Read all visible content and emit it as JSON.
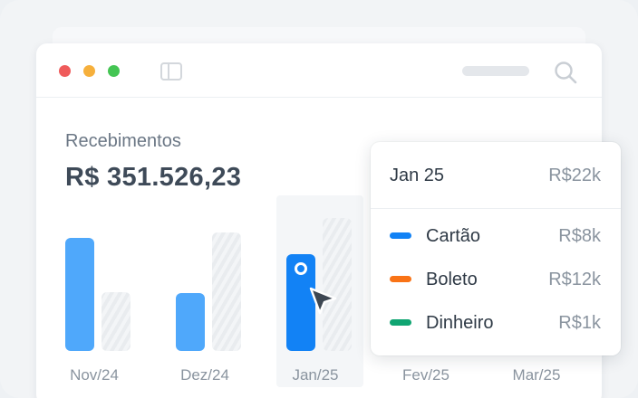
{
  "summary": {
    "label": "Recebimentos",
    "total": "R$ 351.526,23"
  },
  "chart_data": {
    "type": "bar",
    "categories": [
      "Nov/24",
      "Dez/24",
      "Jan/25",
      "Fev/25",
      "Mar/25"
    ],
    "series": [
      {
        "values": [
          125,
          64,
          107,
          null,
          null
        ]
      },
      {
        "values": [
          65,
          131,
          147,
          null,
          null
        ]
      }
    ],
    "selected_category": "Jan/25"
  },
  "tooltip": {
    "month": "Jan 25",
    "total": "R$22k",
    "items": [
      {
        "name": "Cartão",
        "value": "R$8k",
        "color": "#1282f5"
      },
      {
        "name": "Boleto",
        "value": "R$12k",
        "color": "#f97316"
      },
      {
        "name": "Dinheiro",
        "value": "R$1k",
        "color": "#10a572"
      }
    ]
  },
  "colors": {
    "primary_bar": "#4fa8fb",
    "selected_bar": "#1282f5"
  },
  "icons": {
    "sidebar_toggle": "sidebar-icon",
    "search": "search-icon",
    "cursor": "cursor-icon"
  }
}
